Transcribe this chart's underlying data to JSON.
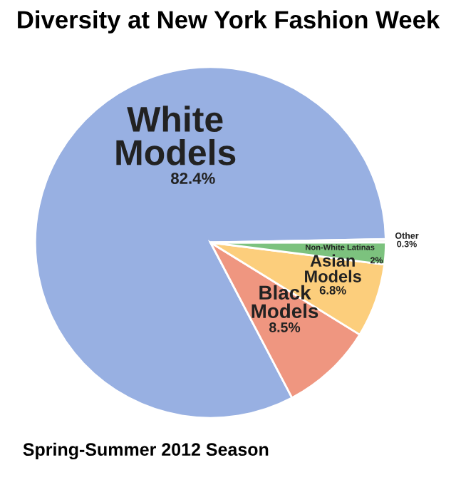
{
  "chart_data": {
    "type": "pie",
    "title": "Diversity at New York Fashion Week",
    "categories": [
      "White Models",
      "Black Models",
      "Asian Models",
      "Non-White Latinas",
      "Other"
    ],
    "values": [
      82.4,
      8.5,
      6.8,
      2,
      0.3
    ],
    "value_labels": [
      "82.4%",
      "8.5%",
      "6.8%",
      "2%",
      "0.3%"
    ],
    "colors": [
      "#98b0e2",
      "#ef9680",
      "#fcce7c",
      "#7cc27e",
      "#f4f4f4"
    ],
    "annotations": [
      "Spring-Summer 2012 Season"
    ],
    "legend": false
  }
}
